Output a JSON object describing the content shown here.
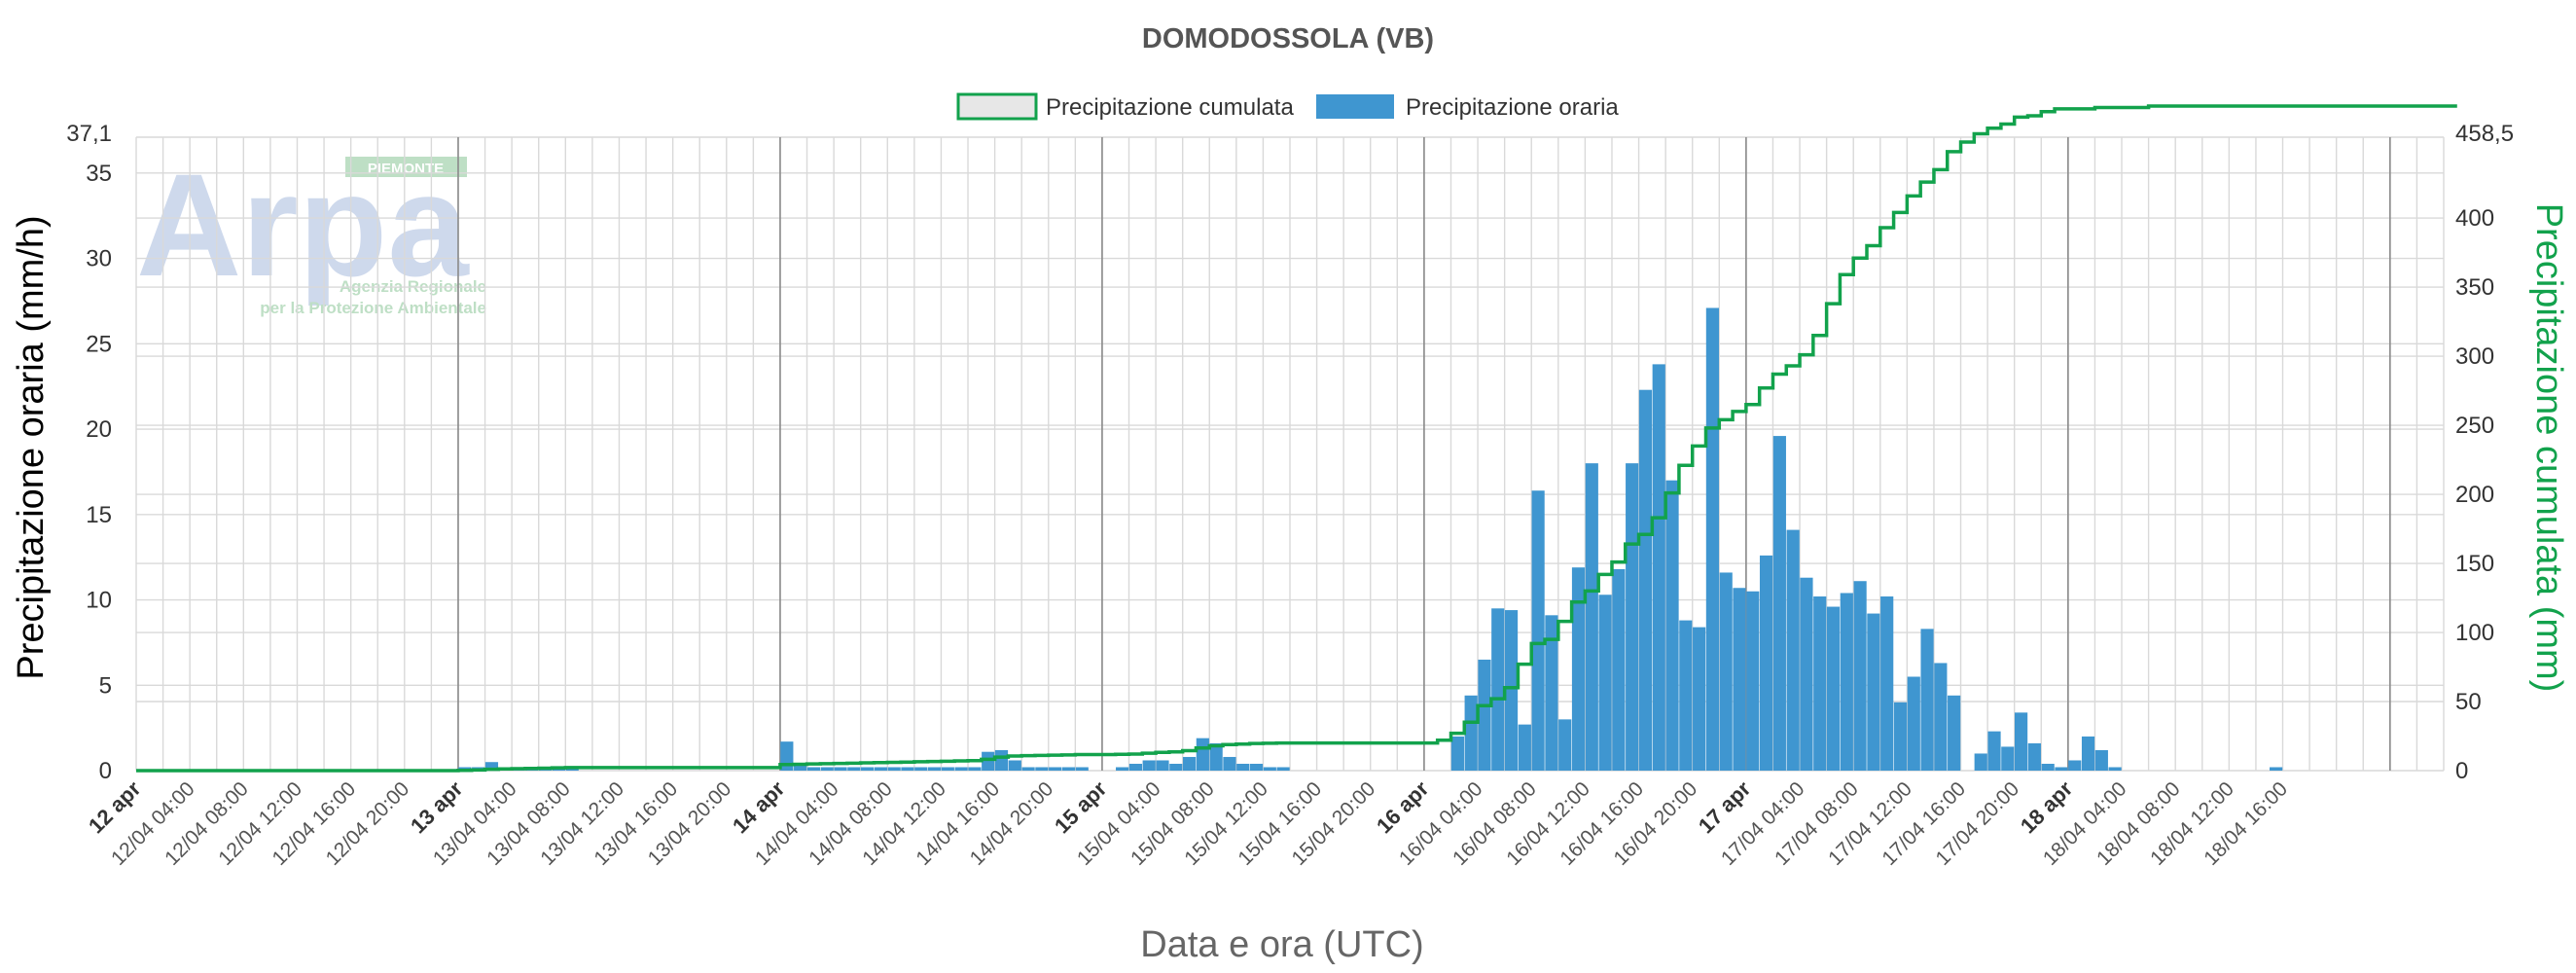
{
  "chart_data": {
    "type": "bar",
    "title": "DOMODOSSOLA (VB)",
    "xlabel": "Data e ora (UTC)",
    "ylabel": "Precipitazione oraria (mm/h)",
    "y2label": "Precipitazione cumulata (mm)",
    "ylim": [
      0,
      37.1
    ],
    "y2lim": [
      0,
      458.5
    ],
    "y_ticks": [
      "0",
      "5",
      "10",
      "15",
      "20",
      "25",
      "30",
      "35",
      "37,1"
    ],
    "y2_ticks": [
      "0",
      "50",
      "100",
      "150",
      "200",
      "250",
      "300",
      "350",
      "400",
      "458,5"
    ],
    "x_tick_labels": [
      "12 apr",
      "12/04 04:00",
      "12/04 08:00",
      "12/04 12:00",
      "12/04 16:00",
      "12/04 20:00",
      "13 apr",
      "13/04 04:00",
      "13/04 08:00",
      "13/04 12:00",
      "13/04 16:00",
      "13/04 20:00",
      "14 apr",
      "14/04 04:00",
      "14/04 08:00",
      "14/04 12:00",
      "14/04 16:00",
      "14/04 20:00",
      "15 apr",
      "15/04 04:00",
      "15/04 08:00",
      "15/04 12:00",
      "15/04 16:00",
      "15/04 20:00",
      "16 apr",
      "16/04 04:00",
      "16/04 08:00",
      "16/04 12:00",
      "16/04 16:00",
      "16/04 20:00",
      "17 apr",
      "17/04 04:00",
      "17/04 08:00",
      "17/04 12:00",
      "17/04 16:00",
      "17/04 20:00",
      "18 apr",
      "18/04 04:00",
      "18/04 08:00",
      "18/04 12:00",
      "18/04 16:00"
    ],
    "x_start": "12/04 00:00",
    "x_end": "18/04 18:00",
    "x_step": "1h",
    "grid": true,
    "legend_position": "top-center",
    "series": [
      {
        "name": "Precipitazione cumulata",
        "type": "step-line",
        "color": "#12a24c",
        "values": [
          0,
          0,
          0,
          0,
          0,
          0,
          0,
          0,
          0,
          0,
          0,
          0,
          0,
          0,
          0,
          0,
          0,
          0,
          0,
          0,
          0,
          0,
          0,
          0,
          0.2,
          0.4,
          1,
          1.2,
          1.4,
          1.6,
          1.8,
          2,
          2.2,
          2.2,
          2.2,
          2.2,
          2.2,
          2.2,
          2.2,
          2.2,
          2.2,
          2.2,
          2.2,
          2.2,
          2.2,
          2.2,
          2.2,
          2.2,
          4.4,
          4.6,
          4.8,
          5,
          5.2,
          5.4,
          5.6,
          5.8,
          6,
          6.2,
          6.4,
          6.6,
          6.8,
          7,
          7.2,
          8.2,
          9.8,
          10.6,
          10.8,
          11,
          11.2,
          11.4,
          11.6,
          11.6,
          11.6,
          11.8,
          12,
          12.6,
          13.2,
          13.6,
          14.4,
          16.4,
          18,
          18.8,
          19.2,
          19.6,
          19.8,
          20,
          20,
          20,
          20,
          20,
          20,
          20,
          20,
          20,
          20,
          20,
          20,
          22,
          27,
          35,
          47,
          52,
          60,
          77,
          92,
          95,
          108,
          122,
          130,
          142,
          151,
          164,
          171,
          183,
          201,
          221,
          235,
          248,
          254,
          260,
          265,
          277,
          287,
          293,
          301,
          315,
          338,
          359,
          371,
          380,
          393,
          404,
          416,
          426,
          435,
          448,
          455,
          461,
          465,
          468,
          473,
          474,
          477,
          479,
          479,
          479,
          480,
          480,
          480,
          480,
          481,
          481,
          481,
          481,
          481,
          481,
          481,
          481,
          481,
          481,
          481,
          481,
          481,
          481,
          481,
          481,
          481,
          481,
          481,
          481,
          481,
          481,
          481
        ]
      },
      {
        "name": "Precipitazione oraria",
        "type": "bar",
        "color": "#3f96d0",
        "values": [
          0,
          0,
          0,
          0,
          0,
          0,
          0,
          0,
          0,
          0,
          0,
          0,
          0,
          0,
          0,
          0,
          0,
          0,
          0,
          0,
          0,
          0,
          0,
          0,
          0.2,
          0.2,
          0.5,
          0.2,
          0.2,
          0.2,
          0.2,
          0.2,
          0.2,
          0,
          0,
          0,
          0,
          0,
          0,
          0,
          0,
          0,
          0,
          0,
          0,
          0,
          0,
          0,
          1.7,
          0.3,
          0.2,
          0.2,
          0.2,
          0.2,
          0.2,
          0.2,
          0.2,
          0.2,
          0.2,
          0.2,
          0.2,
          0.2,
          0.2,
          1.1,
          1.2,
          0.6,
          0.2,
          0.2,
          0.2,
          0.2,
          0.2,
          0,
          0,
          0.2,
          0.4,
          0.6,
          0.6,
          0.4,
          0.8,
          1.9,
          1.6,
          0.8,
          0.4,
          0.4,
          0.2,
          0.2,
          0,
          0,
          0,
          0,
          0,
          0,
          0,
          0,
          0,
          0,
          0,
          0,
          2,
          4.4,
          6.5,
          9.5,
          9.4,
          2.7,
          16.4,
          9.1,
          3,
          11.9,
          18,
          10.3,
          11.8,
          18,
          22.3,
          23.8,
          17,
          8.8,
          8.4,
          27.1,
          11.6,
          10.7,
          10.5,
          12.6,
          19.6,
          14.1,
          11.3,
          10.2,
          9.6,
          10.4,
          11.1,
          9.2,
          10.2,
          4,
          5.5,
          8.3,
          6.3,
          4.4,
          0,
          1,
          2.3,
          1.4,
          3.4,
          1.6,
          0.4,
          0.2,
          0.6,
          2,
          1.2,
          0.2,
          0,
          0,
          0,
          0,
          0,
          0,
          0,
          0,
          0,
          0,
          0,
          0.2,
          0,
          0,
          0,
          0,
          0,
          0,
          0,
          0,
          0,
          0,
          0,
          0
        ]
      }
    ]
  },
  "legend": {
    "cumulata_label": "Precipitazione cumulata",
    "oraria_label": "Precipitazione oraria"
  },
  "logo": {
    "main": "Arpa",
    "region": "PIEMONTE",
    "line1": "Agenzia Regionale",
    "line2": "per la Protezione Ambientale"
  },
  "colors": {
    "bars": "#3f96d0",
    "cumulative": "#12a24c",
    "legend_cum_fill": "#e7e7e7"
  }
}
